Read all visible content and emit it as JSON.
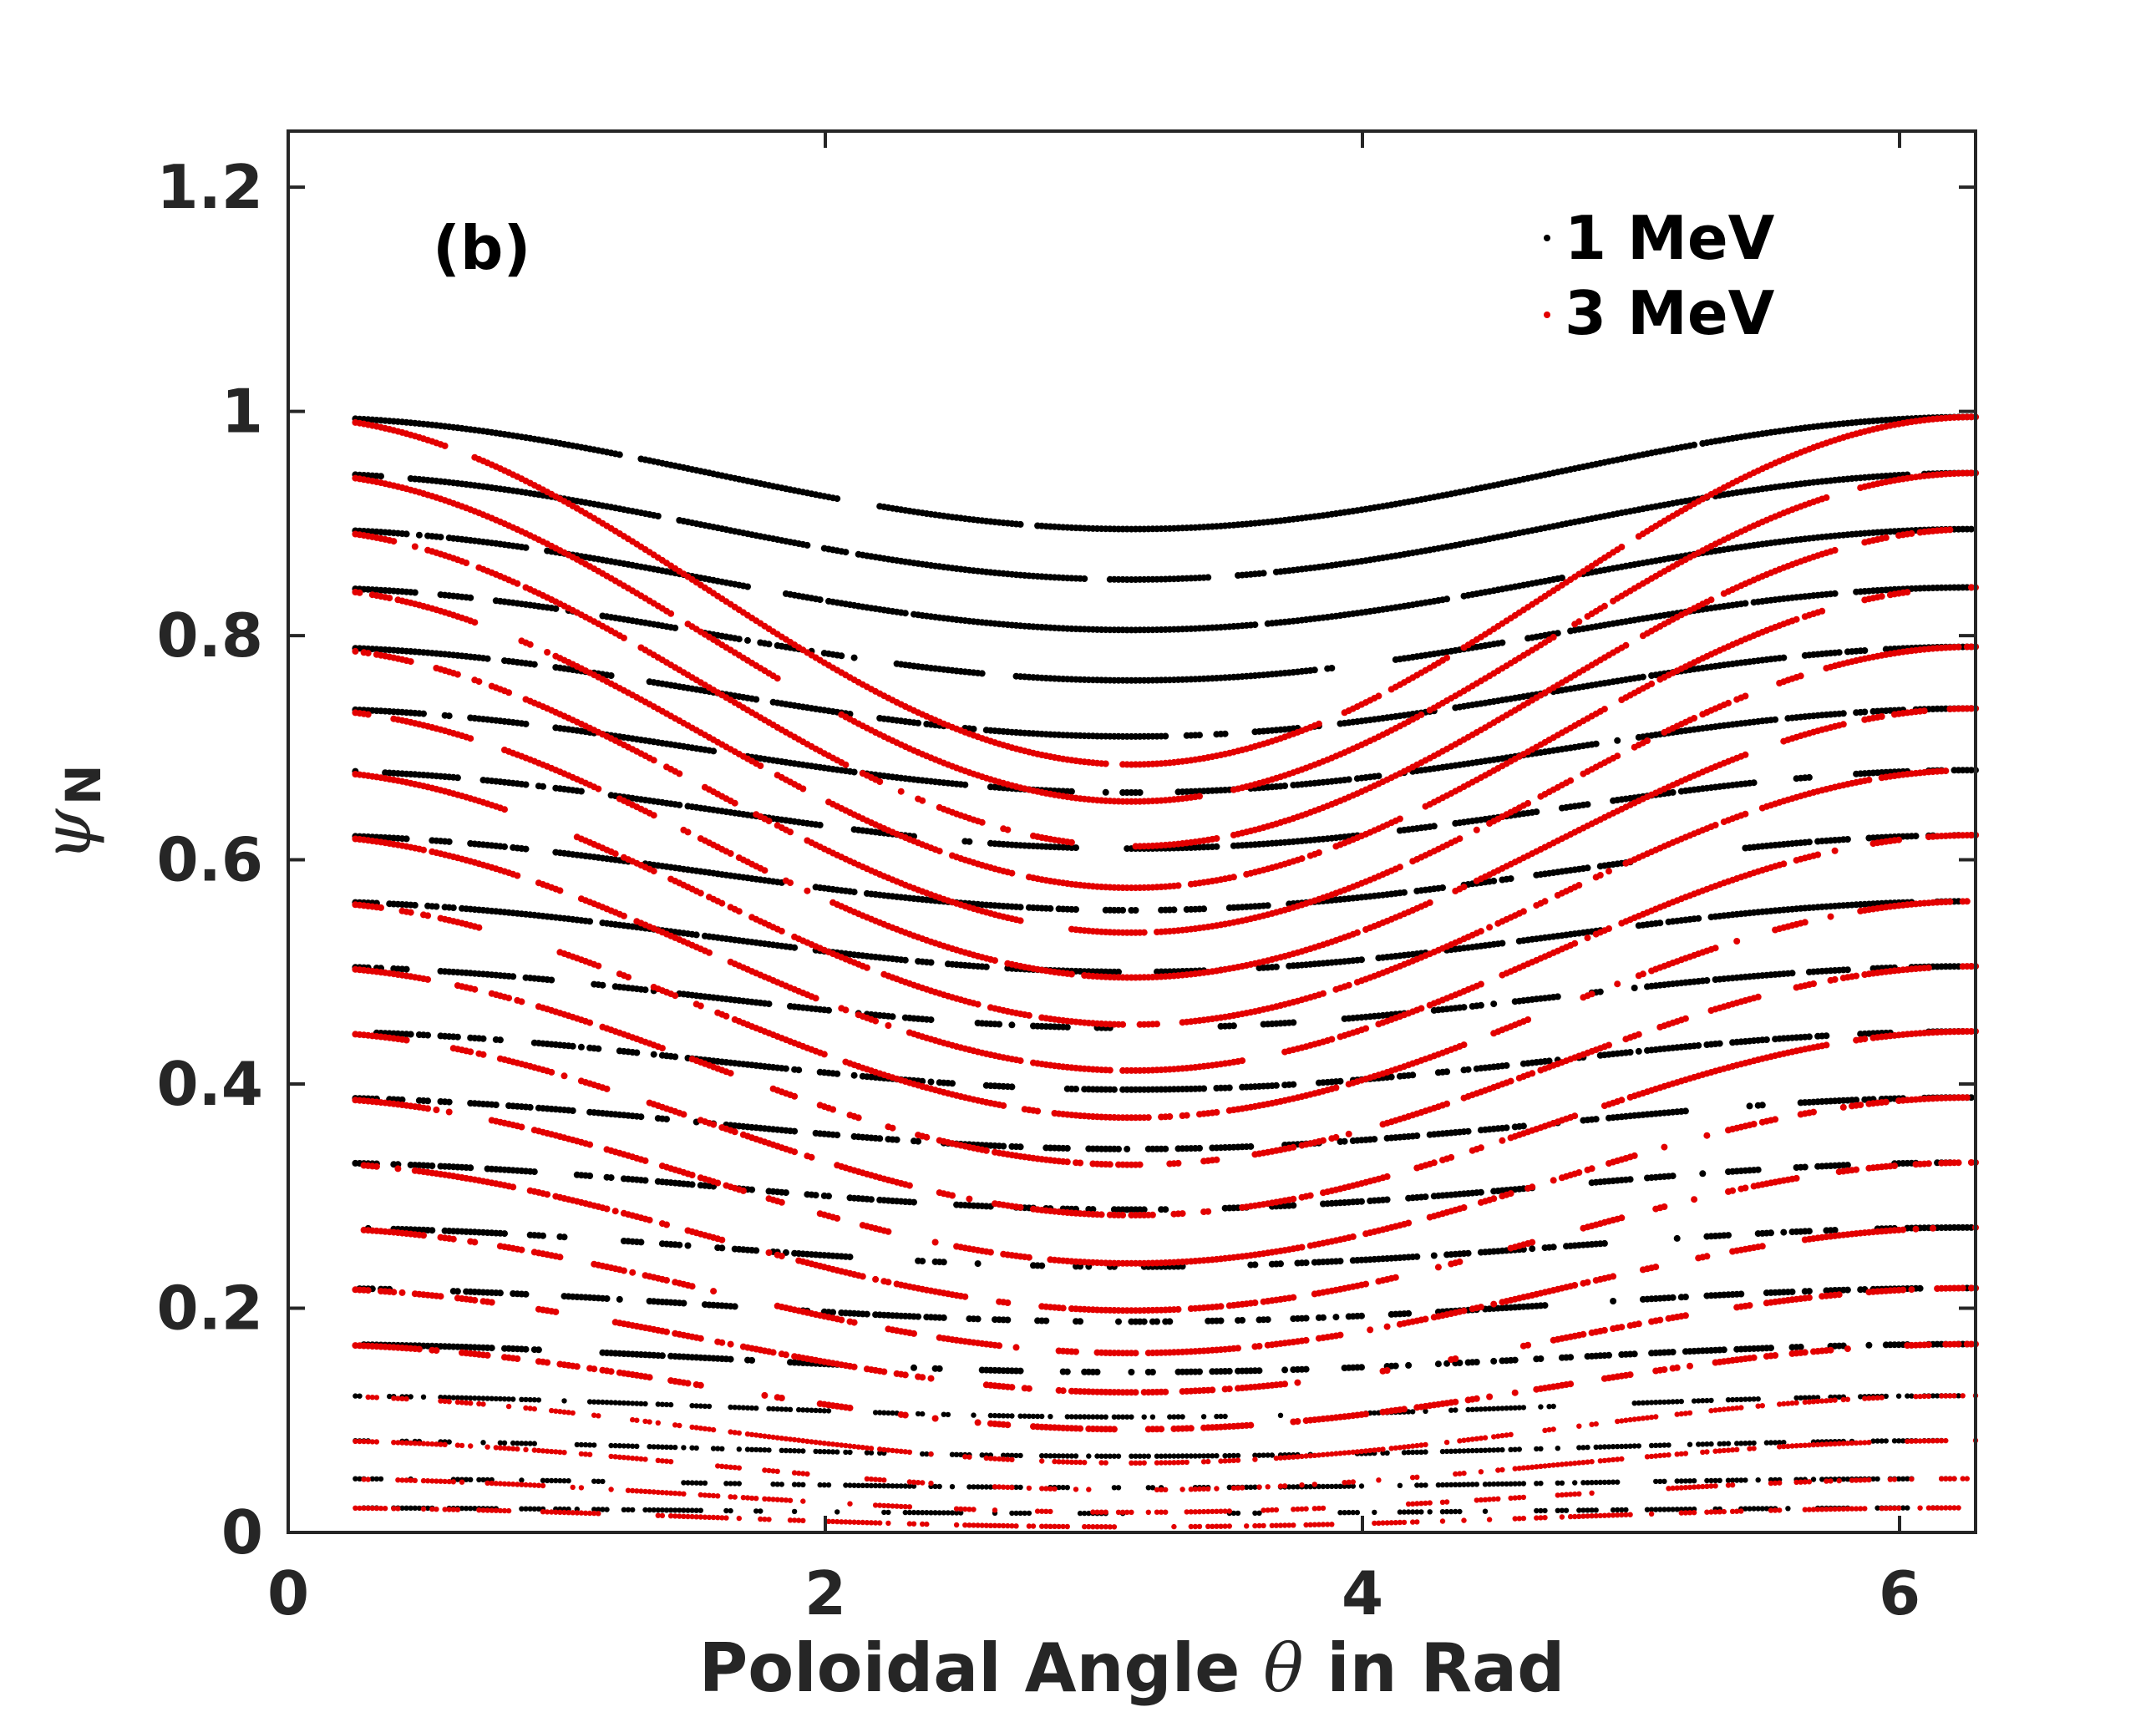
{
  "chart_data": {
    "type": "scatter",
    "panel_label": "(b)",
    "xlabel": {
      "prefix": "Poloidal Angle ",
      "symbol": "θ",
      "suffix": " in Rad"
    },
    "ylabel": {
      "symbol": "ψ",
      "subscript": "N"
    },
    "xlim": [
      0,
      6.283
    ],
    "ylim": [
      0,
      1.25
    ],
    "xticks": [
      0,
      2,
      4,
      6
    ],
    "xtick_labels": [
      "0",
      "2",
      "4",
      "6"
    ],
    "yticks": [
      0,
      0.2,
      0.4,
      0.6,
      0.8,
      1.0,
      1.2
    ],
    "ytick_labels": [
      "0",
      "0.2",
      "0.4",
      "0.6",
      "0.8",
      "1",
      "1.2"
    ],
    "grid": false,
    "legend_position": "top-right",
    "series": [
      {
        "name": "1 MeV",
        "color": "#000000",
        "x_range": [
          0.25,
          6.283
        ],
        "min_at_x": 3.14,
        "orbits": [
          {
            "start": 0.995,
            "min": 0.895
          },
          {
            "start": 0.945,
            "min": 0.85
          },
          {
            "start": 0.895,
            "min": 0.805
          },
          {
            "start": 0.843,
            "min": 0.76
          },
          {
            "start": 0.79,
            "min": 0.71
          },
          {
            "start": 0.735,
            "min": 0.66
          },
          {
            "start": 0.68,
            "min": 0.61
          },
          {
            "start": 0.622,
            "min": 0.555
          },
          {
            "start": 0.563,
            "min": 0.5
          },
          {
            "start": 0.505,
            "min": 0.45
          },
          {
            "start": 0.447,
            "min": 0.395
          },
          {
            "start": 0.388,
            "min": 0.342
          },
          {
            "start": 0.33,
            "min": 0.288
          },
          {
            "start": 0.272,
            "min": 0.237
          },
          {
            "start": 0.218,
            "min": 0.188
          },
          {
            "start": 0.168,
            "min": 0.143
          },
          {
            "start": 0.122,
            "min": 0.103
          },
          {
            "start": 0.082,
            "min": 0.068
          },
          {
            "start": 0.048,
            "min": 0.04
          },
          {
            "start": 0.022,
            "min": 0.017
          }
        ]
      },
      {
        "name": "3 MeV",
        "color": "#e30000",
        "x_range": [
          0.25,
          6.283
        ],
        "min_at_x": 3.14,
        "orbits": [
          {
            "start": 0.995,
            "min": 0.685
          },
          {
            "start": 0.945,
            "min": 0.652
          },
          {
            "start": 0.895,
            "min": 0.612
          },
          {
            "start": 0.843,
            "min": 0.575
          },
          {
            "start": 0.79,
            "min": 0.535
          },
          {
            "start": 0.735,
            "min": 0.495
          },
          {
            "start": 0.68,
            "min": 0.453
          },
          {
            "start": 0.622,
            "min": 0.412
          },
          {
            "start": 0.563,
            "min": 0.37
          },
          {
            "start": 0.505,
            "min": 0.328
          },
          {
            "start": 0.447,
            "min": 0.283
          },
          {
            "start": 0.388,
            "min": 0.24
          },
          {
            "start": 0.33,
            "min": 0.198
          },
          {
            "start": 0.272,
            "min": 0.16
          },
          {
            "start": 0.218,
            "min": 0.125
          },
          {
            "start": 0.168,
            "min": 0.092
          },
          {
            "start": 0.122,
            "min": 0.062
          },
          {
            "start": 0.082,
            "min": 0.038
          },
          {
            "start": 0.048,
            "min": 0.018
          },
          {
            "start": 0.022,
            "min": 0.005
          }
        ]
      }
    ]
  }
}
